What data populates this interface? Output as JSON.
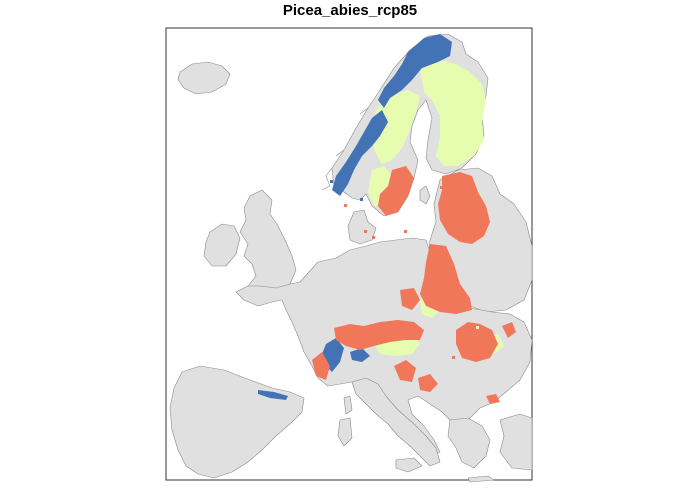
{
  "title": "Picea_abies_rcp85",
  "colors": {
    "land": "#e0e0e0",
    "land_border": "#8a8a8a",
    "sea": "#ffffff",
    "frame": "#333333",
    "class_blue": "#4372b5",
    "class_green": "#e6fdb0",
    "class_orange": "#f0775a"
  }
}
